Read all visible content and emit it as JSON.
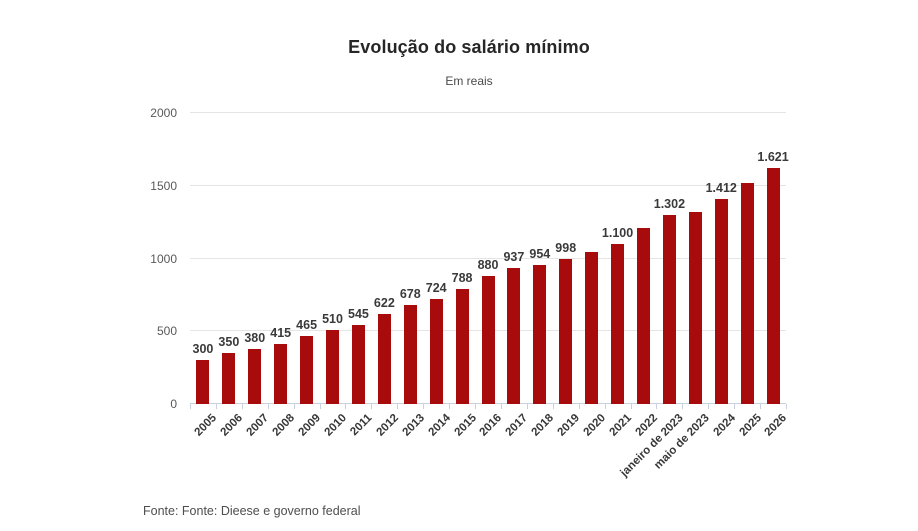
{
  "header": {
    "title": "Evolução do salário mínimo",
    "subtitle": "Em reais"
  },
  "footer": {
    "source": "Fonte: Fonte: Dieese e governo federal"
  },
  "colors": {
    "bar": "#a80b0b",
    "gridline": "#e4e4e4",
    "axis": "#c9d2de",
    "value_label": "#3a3a3a"
  },
  "chart_data": {
    "type": "bar",
    "title": "Evolução do salário mínimo",
    "subtitle": "Em reais",
    "xlabel": "",
    "ylabel": "",
    "ylim": [
      0,
      2000
    ],
    "yticks": [
      0,
      500,
      1000,
      1500,
      2000
    ],
    "ytick_labels": [
      "0",
      "500",
      "1000",
      "1500",
      "2000"
    ],
    "grid": true,
    "legend_position": "none",
    "categories": [
      "2005",
      "2006",
      "2007",
      "2008",
      "2009",
      "2010",
      "2011",
      "2012",
      "2013",
      "2014",
      "2015",
      "2016",
      "2017",
      "2018",
      "2019",
      "2020",
      "2021",
      "2022",
      "janeiro de 2023",
      "maio de 2023",
      "2024",
      "2025",
      "2026"
    ],
    "values": [
      300,
      350,
      380,
      415,
      465,
      510,
      545,
      622,
      678,
      724,
      788,
      880,
      937,
      954,
      998,
      1045,
      1100,
      1212,
      1302,
      1320,
      1412,
      1518,
      1621
    ],
    "bar_labels": [
      "300",
      "350",
      "380",
      "415",
      "465",
      "510",
      "545",
      "622",
      "678",
      "724",
      "788",
      "880",
      "937",
      "954",
      "998",
      "",
      "1.100",
      "",
      "1.302",
      "",
      "1.412",
      "",
      "1.621"
    ]
  }
}
